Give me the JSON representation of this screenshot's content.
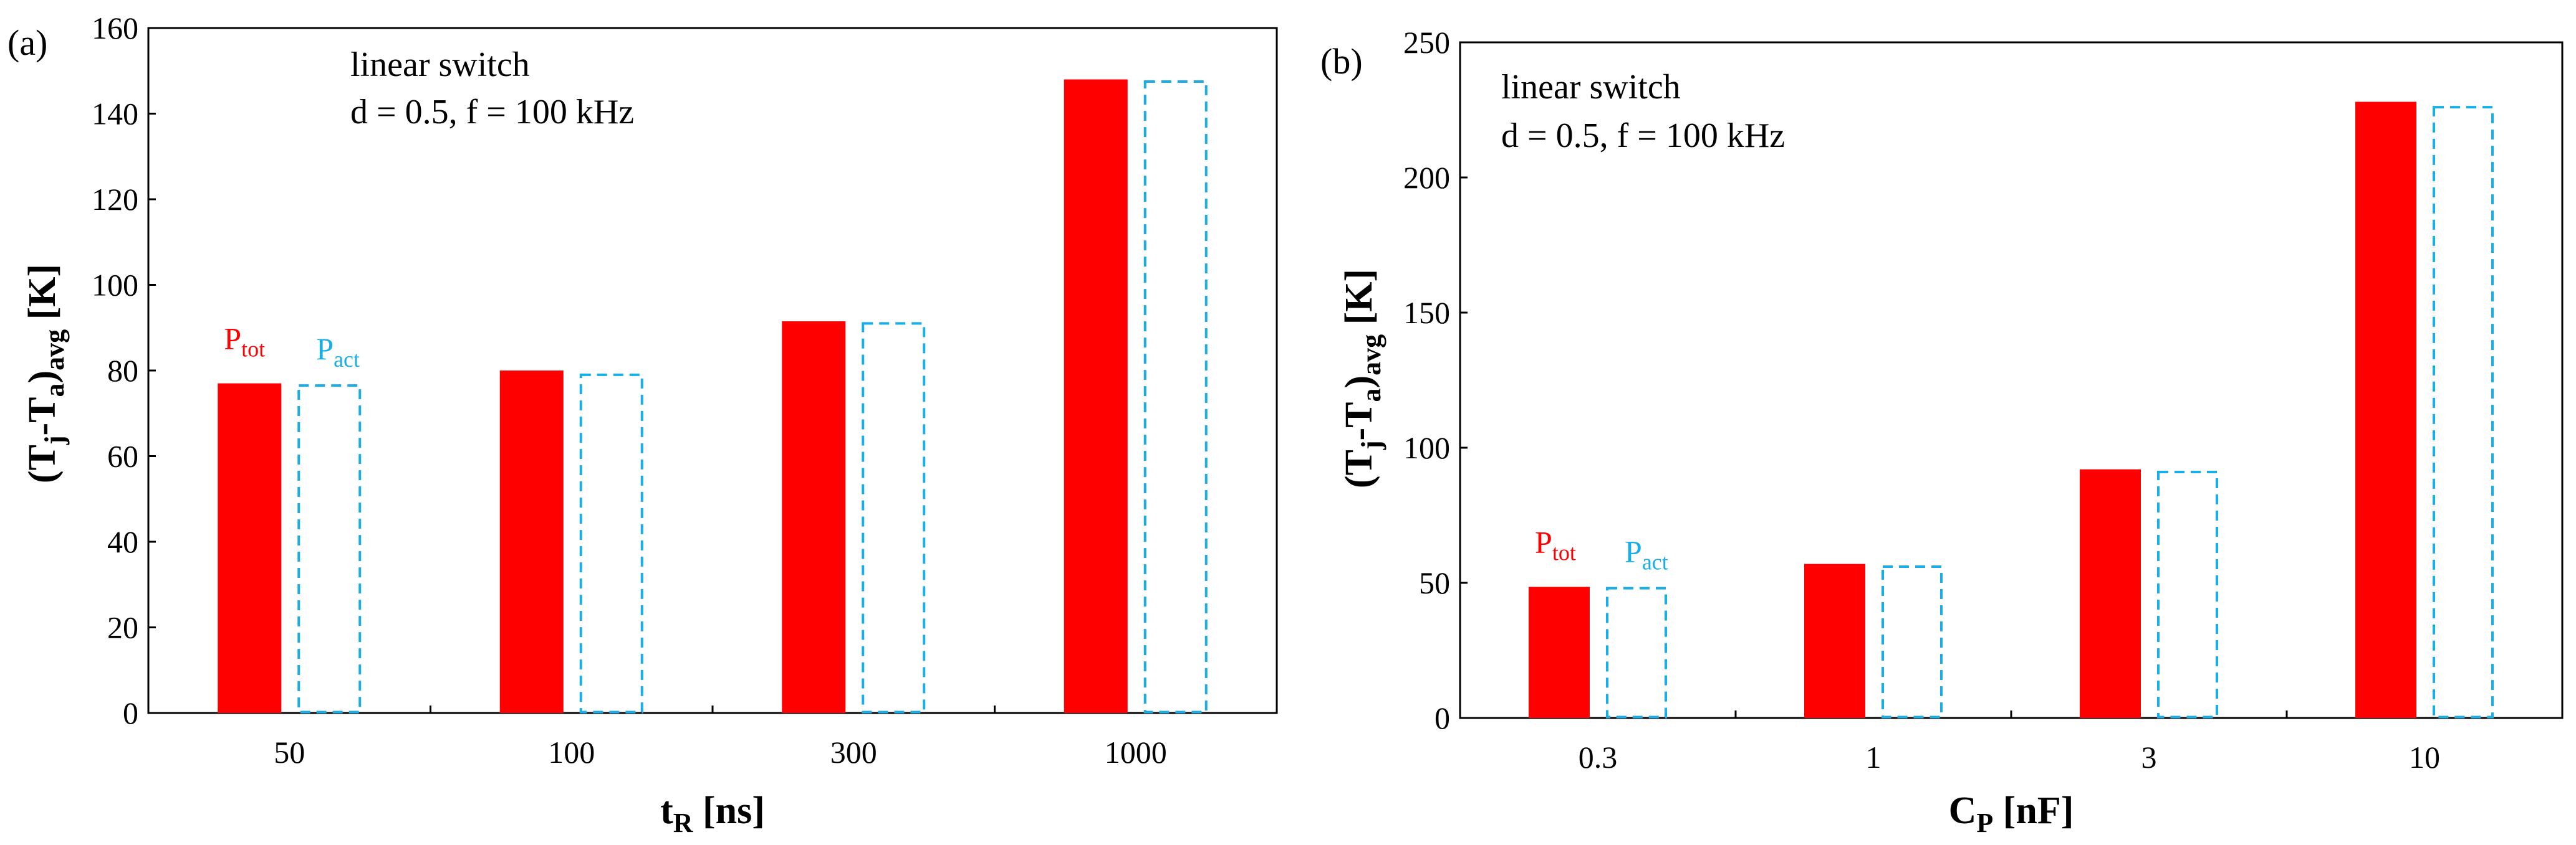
{
  "colors": {
    "ptot": "#ff0000",
    "pact": "#1aaee6",
    "axis": "#000000"
  },
  "chart_data": [
    {
      "type": "bar",
      "panel_label": "(a)",
      "annotation_line1": "linear switch",
      "annotation_line2": "d = 0.5, f = 100 kHz",
      "ylabel": {
        "main": "(T",
        "sub1": "j",
        "mid": "-T",
        "sub2": "a",
        "close": ")",
        "sub3": "avg",
        "tail": " [K]"
      },
      "xlabel": {
        "main": "t",
        "sub": "R",
        "tail": " [ns]"
      },
      "categories": [
        "50",
        "100",
        "300",
        "1000"
      ],
      "ylim": [
        0,
        160
      ],
      "yticks": [
        "0",
        "20",
        "40",
        "60",
        "80",
        "100",
        "120",
        "140",
        "160"
      ],
      "series": [
        {
          "name": "P",
          "sub": "tot",
          "values": [
            77,
            80,
            91.5,
            148
          ]
        },
        {
          "name": "P",
          "sub": "act",
          "values": [
            76.5,
            79,
            91,
            147.5
          ]
        }
      ],
      "legend_category_index": 0
    },
    {
      "type": "bar",
      "panel_label": "(b)",
      "annotation_line1": "linear switch",
      "annotation_line2": "d = 0.5, f = 100 kHz",
      "ylabel": {
        "main": "(T",
        "sub1": "j",
        "mid": "-T",
        "sub2": "a",
        "close": ")",
        "sub3": "avg",
        "tail": " [K]"
      },
      "xlabel": {
        "main": "C",
        "sub": "P",
        "tail": " [nF]"
      },
      "categories": [
        "0.3",
        "1",
        "3",
        "10"
      ],
      "ylim": [
        0,
        250
      ],
      "yticks": [
        "0",
        "50",
        "100",
        "150",
        "200",
        "250"
      ],
      "series": [
        {
          "name": "P",
          "sub": "tot",
          "values": [
            48.5,
            57,
            92,
            228
          ]
        },
        {
          "name": "P",
          "sub": "act",
          "values": [
            48,
            56,
            91,
            226
          ]
        }
      ],
      "legend_category_index": 0
    }
  ]
}
